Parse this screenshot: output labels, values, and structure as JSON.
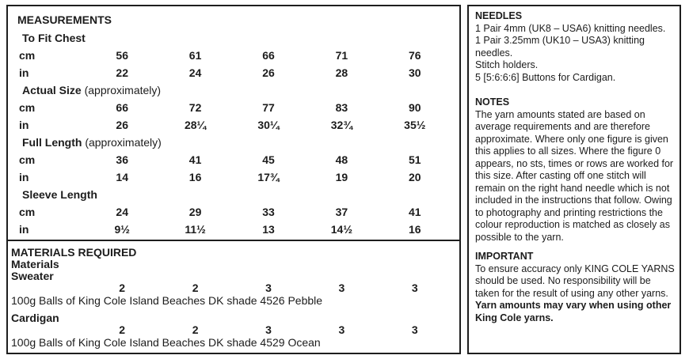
{
  "colors": {
    "text": "#1c1c1c",
    "border": "#1e1e1e",
    "background": "#ffffff"
  },
  "measurements": {
    "title": "MEASUREMENTS",
    "units": {
      "cm": "cm",
      "in": "in"
    },
    "sections": [
      {
        "label": "To Fit Chest",
        "label_note": "",
        "cm": [
          "56",
          "61",
          "66",
          "71",
          "76"
        ],
        "in": [
          "22",
          "24",
          "26",
          "28",
          "30"
        ]
      },
      {
        "label": "Actual Size",
        "label_note": " (approximately)",
        "cm": [
          "66",
          "72",
          "77",
          "83",
          "90"
        ],
        "in": [
          "26",
          "28¼",
          "30¼",
          "32¾",
          "35½"
        ]
      },
      {
        "label": "Full Length",
        "label_note": " (approximately)",
        "cm": [
          "36",
          "41",
          "45",
          "48",
          "51"
        ],
        "in": [
          "14",
          "16",
          "17¾",
          "19",
          "20"
        ]
      },
      {
        "label": "Sleeve Length",
        "label_note": "",
        "cm": [
          "24",
          "29",
          "33",
          "37",
          "41"
        ],
        "in": [
          "9½",
          "11½",
          "13",
          "14½",
          "16"
        ]
      }
    ]
  },
  "materials": {
    "title": "MATERIALS REQUIRED",
    "subtitle": "Materials",
    "items": [
      {
        "name": "Sweater",
        "quantities": [
          "2",
          "2",
          "3",
          "3",
          "3"
        ],
        "description": "100g Balls of King Cole Island Beaches DK shade 4526 Pebble"
      },
      {
        "name": "Cardigan",
        "quantities": [
          "2",
          "2",
          "3",
          "3",
          "3"
        ],
        "description": "100g Balls of King Cole Island Beaches DK shade 4529 Ocean"
      }
    ]
  },
  "needles": {
    "title": "NEEDLES",
    "lines": [
      "1 Pair 4mm (UK8 – USA6) knitting needles.",
      "1 Pair 3.25mm (UK10 – USA3) knitting needles.",
      "Stitch holders.",
      "5 [5:6:6:6] Buttons for Cardigan."
    ]
  },
  "notes": {
    "title": "NOTES",
    "body": "The yarn amounts stated are based on average requirements and are therefore approximate. Where only one figure is given this applies to all sizes. Where the figure 0 appears, no sts, times or rows are worked for this size. After casting off one stitch will remain on the right hand needle which is not included in the instructions that follow. Owing to photography and printing restrictions the colour reproduction is matched as closely as possible to the yarn."
  },
  "important": {
    "title": "IMPORTANT",
    "body_regular": "To ensure accuracy only KING COLE YARNS should be used. No responsibility will be taken for the result of using any other yarns.",
    "body_bold": "Yarn amounts may vary when using other King Cole yarns."
  }
}
